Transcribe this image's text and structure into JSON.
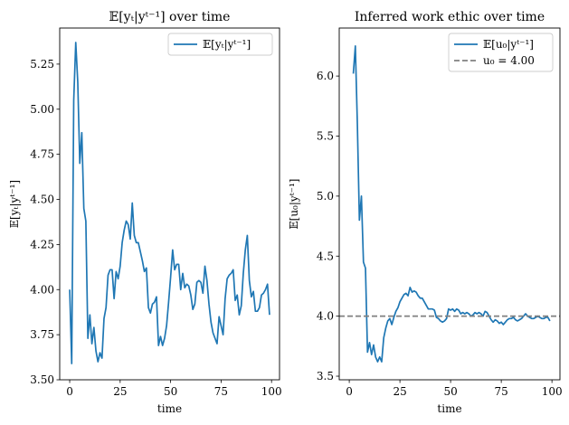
{
  "chart_data": [
    {
      "type": "line",
      "title": "𝔼[yₜ|yᵗ⁻¹] over time",
      "xlabel": "time",
      "ylabel": "𝔼[yₜ|yᵗ⁻¹]",
      "xlim": [
        -4.95,
        103.95
      ],
      "ylim": [
        3.5,
        5.45
      ],
      "xticks": [
        0,
        25,
        50,
        75,
        100
      ],
      "yticks": [
        3.5,
        3.75,
        4.0,
        4.25,
        4.5,
        4.75,
        5.0,
        5.25
      ],
      "ytick_labels": [
        "3.50",
        "3.75",
        "4.00",
        "4.25",
        "4.50",
        "4.75",
        "5.00",
        "5.25"
      ],
      "grid": false,
      "legend_position": "top-right",
      "series": [
        {
          "name": "𝔼[yₜ|yᵗ⁻¹]",
          "color": "#1f77b4",
          "style": "solid",
          "x": [
            0,
            1,
            2,
            3,
            4,
            5,
            6,
            7,
            8,
            9,
            10,
            11,
            12,
            13,
            14,
            15,
            16,
            17,
            18,
            19,
            20,
            21,
            22,
            23,
            24,
            25,
            26,
            27,
            28,
            29,
            30,
            31,
            32,
            33,
            34,
            35,
            36,
            37,
            38,
            39,
            40,
            41,
            42,
            43,
            44,
            45,
            46,
            47,
            48,
            49,
            50,
            51,
            52,
            53,
            54,
            55,
            56,
            57,
            58,
            59,
            60,
            61,
            62,
            63,
            64,
            65,
            66,
            67,
            68,
            69,
            70,
            71,
            72,
            73,
            74,
            75,
            76,
            77,
            78,
            79,
            80,
            81,
            82,
            83,
            84,
            85,
            86,
            87,
            88,
            89,
            90,
            91,
            92,
            93,
            94,
            95,
            96,
            97,
            98,
            99
          ],
          "values": [
            4.0,
            3.59,
            5.05,
            5.37,
            5.15,
            4.7,
            4.87,
            4.45,
            4.38,
            3.73,
            3.86,
            3.7,
            3.79,
            3.66,
            3.6,
            3.65,
            3.62,
            3.84,
            3.9,
            4.08,
            4.11,
            4.11,
            3.95,
            4.1,
            4.06,
            4.13,
            4.26,
            4.33,
            4.38,
            4.36,
            4.28,
            4.48,
            4.3,
            4.26,
            4.26,
            4.21,
            4.16,
            4.1,
            4.12,
            3.9,
            3.87,
            3.92,
            3.93,
            3.96,
            3.69,
            3.74,
            3.69,
            3.73,
            3.8,
            3.93,
            4.07,
            4.22,
            4.11,
            4.14,
            4.14,
            4.0,
            4.09,
            4.01,
            4.03,
            4.02,
            3.97,
            3.89,
            3.92,
            4.04,
            4.05,
            4.04,
            3.98,
            4.13,
            4.05,
            3.92,
            3.82,
            3.76,
            3.73,
            3.7,
            3.85,
            3.8,
            3.75,
            3.95,
            4.06,
            4.08,
            4.09,
            4.11,
            3.94,
            3.97,
            3.86,
            3.91,
            4.09,
            4.22,
            4.3,
            4.05,
            3.96,
            3.99,
            3.88,
            3.88,
            3.9,
            3.97,
            3.98,
            4.0,
            4.03,
            3.86
          ]
        }
      ]
    },
    {
      "type": "line",
      "title": "Inferred work ethic over time",
      "xlabel": "time",
      "ylabel": "𝔼[u₀|yᵗ⁻¹]",
      "xlim": [
        -4.95,
        103.95
      ],
      "ylim": [
        3.47,
        6.4
      ],
      "xticks": [
        0,
        25,
        50,
        75,
        100
      ],
      "yticks": [
        3.5,
        4.0,
        4.5,
        5.0,
        5.5,
        6.0
      ],
      "ytick_labels": [
        "3.5",
        "4.0",
        "4.5",
        "5.0",
        "5.5",
        "6.0"
      ],
      "grid": false,
      "legend_position": "top-right",
      "series": [
        {
          "name": "𝔼[u₀|yᵗ⁻¹]",
          "color": "#1f77b4",
          "style": "solid",
          "x": [
            0,
            1,
            2,
            3,
            4,
            5,
            6,
            7,
            8,
            9,
            10,
            11,
            12,
            13,
            14,
            15,
            16,
            17,
            18,
            19,
            20,
            21,
            22,
            23,
            24,
            25,
            26,
            27,
            28,
            29,
            30,
            31,
            32,
            33,
            34,
            35,
            36,
            37,
            38,
            39,
            40,
            41,
            42,
            43,
            44,
            45,
            46,
            47,
            48,
            49,
            50,
            51,
            52,
            53,
            54,
            55,
            56,
            57,
            58,
            59,
            60,
            61,
            62,
            63,
            64,
            65,
            66,
            67,
            68,
            69,
            70,
            71,
            72,
            73,
            74,
            75,
            76,
            77,
            78,
            79,
            80,
            81,
            82,
            83,
            84,
            85,
            86,
            87,
            88,
            89,
            90,
            91,
            92,
            93,
            94,
            95,
            96,
            97,
            98,
            99
          ],
          "values": [
            null,
            null,
            6.02,
            6.25,
            5.6,
            4.8,
            5.0,
            4.45,
            4.4,
            3.7,
            3.78,
            3.68,
            3.76,
            3.66,
            3.62,
            3.66,
            3.62,
            3.82,
            3.9,
            3.96,
            3.98,
            3.93,
            3.99,
            4.04,
            4.07,
            4.12,
            4.15,
            4.18,
            4.19,
            4.17,
            4.24,
            4.2,
            4.21,
            4.2,
            4.17,
            4.15,
            4.15,
            4.12,
            4.09,
            4.06,
            4.06,
            4.06,
            4.05,
            3.99,
            3.98,
            3.96,
            3.95,
            3.96,
            3.98,
            4.06,
            4.05,
            4.06,
            4.04,
            4.06,
            4.05,
            4.02,
            4.03,
            4.02,
            4.03,
            4.02,
            4.0,
            4.01,
            4.03,
            4.02,
            4.03,
            4.02,
            4.0,
            4.04,
            4.03,
            4.0,
            3.97,
            3.95,
            3.97,
            3.96,
            3.94,
            3.95,
            3.93,
            3.95,
            3.97,
            3.98,
            3.98,
            3.99,
            3.97,
            3.96,
            3.97,
            3.98,
            4.0,
            4.02,
            4.0,
            3.99,
            3.98,
            3.98,
            3.99,
            4.0,
            3.99,
            3.98,
            3.98,
            3.99,
            3.99,
            3.96
          ]
        },
        {
          "name": "u₀ = 4.00",
          "color": "#808080",
          "style": "dashed",
          "hline": 4.0
        }
      ]
    }
  ]
}
